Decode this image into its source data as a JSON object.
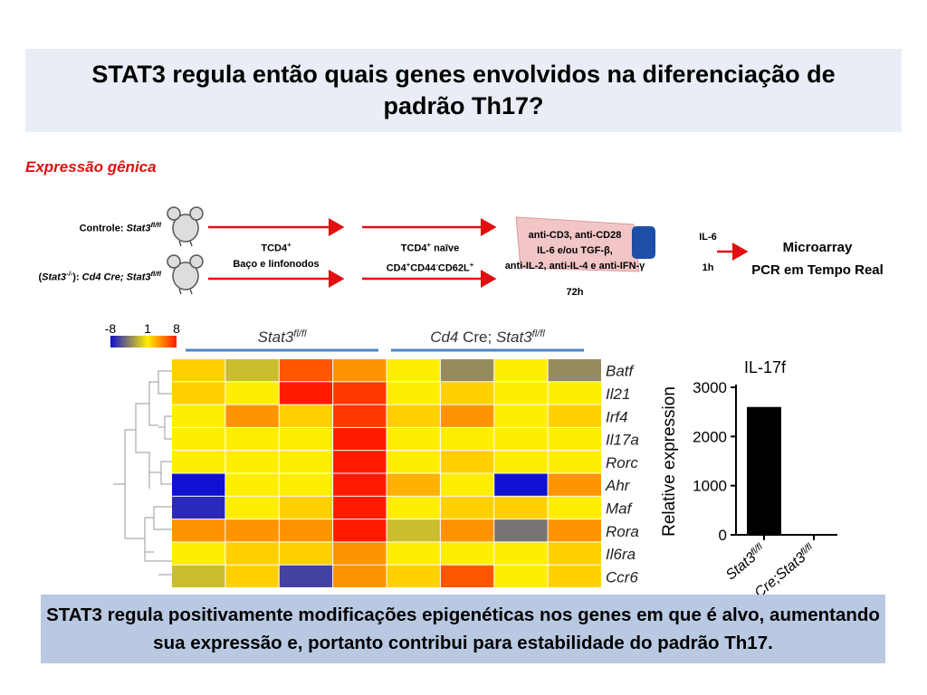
{
  "title": "STAT3 regula então quais genes envolvidos na diferenciação de padrão Th17?",
  "subtitle": "Expressão gênica",
  "diagram": {
    "control_label": [
      {
        "text": "Controle: ",
        "style": "b"
      },
      {
        "text": "Stat3",
        "style": "b i"
      },
      {
        "text": "fl/fl",
        "style": "b i sup"
      }
    ],
    "knockout_label": [
      {
        "text": "(",
        "style": "b"
      },
      {
        "text": "Stat3",
        "style": "b i"
      },
      {
        "text": "-/-",
        "style": "b i sup"
      },
      {
        "text": "): ",
        "style": "b"
      },
      {
        "text": "Cd4 Cre; Stat3",
        "style": "b i"
      },
      {
        "text": "fl/fl",
        "style": "b i sup"
      }
    ],
    "step1": [
      [
        {
          "text": "TCD4",
          "style": "b"
        },
        {
          "text": "+",
          "style": "b sup"
        }
      ],
      [
        {
          "text": "Baço e linfonodos",
          "style": "b"
        }
      ]
    ],
    "step2": [
      [
        {
          "text": "TCD4",
          "style": "b"
        },
        {
          "text": "+",
          "style": "b sup"
        },
        {
          "text": " naïve",
          "style": "b"
        }
      ],
      [
        {
          "text": "CD4",
          "style": "b"
        },
        {
          "text": "+",
          "style": "b sup"
        },
        {
          "text": "CD44",
          "style": "b"
        },
        {
          "text": "-",
          "style": "b sup"
        },
        {
          "text": "CD62L",
          "style": "b"
        },
        {
          "text": "+",
          "style": "b sup"
        }
      ]
    ],
    "culture": [
      "anti-CD3, anti-CD28",
      "IL-6 e/ou TGF-β,",
      "anti-IL-2, anti-IL-4 e anti-IFN-γ"
    ],
    "culture_time": "72h",
    "restim": "IL-6",
    "restim_time": "1h",
    "readout": [
      "Microarray",
      "PCR em Tempo Real"
    ]
  },
  "heatmap": {
    "colorscale": [
      {
        "value": -8,
        "color": "#1010d0"
      },
      {
        "value": 1,
        "color": "#ffee00"
      },
      {
        "value": 8,
        "color": "#ff1a00"
      }
    ],
    "groups": [
      [
        {
          "text": "Stat3",
          "style": "i"
        },
        {
          "text": "fl/fl",
          "style": "i sup"
        }
      ],
      [
        {
          "text": "Cd4",
          "style": "i"
        },
        {
          "text": " Cre; ",
          "style": ""
        },
        {
          "text": "Stat3",
          "style": "i"
        },
        {
          "text": "fl/fl",
          "style": "i sup"
        }
      ]
    ],
    "genes": [
      "Batf",
      "Il21",
      "Irf4",
      "Il17a",
      "Rorc",
      "Ahr",
      "Maf",
      "Rora",
      "Il6ra",
      "Ccr6"
    ],
    "values": [
      [
        2,
        -1,
        6,
        4,
        1,
        -3,
        1,
        -3
      ],
      [
        2,
        1,
        8,
        7,
        1,
        2,
        1,
        1
      ],
      [
        1,
        4,
        2,
        7,
        2,
        4,
        1,
        2
      ],
      [
        1,
        1,
        1,
        8,
        1,
        1,
        1,
        1
      ],
      [
        1,
        1,
        1,
        8,
        1,
        2,
        1,
        1
      ],
      [
        -8,
        1,
        1,
        8,
        3,
        1,
        -8,
        4
      ],
      [
        -7,
        1,
        2,
        8,
        1,
        2,
        2,
        1
      ],
      [
        4,
        4,
        4,
        8,
        -1,
        4,
        -4,
        4
      ],
      [
        1,
        2,
        2,
        4,
        1,
        1,
        1,
        2
      ],
      [
        -1,
        2,
        -6,
        4,
        2,
        6,
        1,
        2
      ]
    ]
  },
  "bar_chart": {
    "type": "bar",
    "title": "IL-17f",
    "y_label": "Relative expression",
    "categories": [
      [
        {
          "text": "Stat3",
          "style": "i"
        },
        {
          "text": "fl/fl",
          "style": "i sup"
        }
      ],
      [
        {
          "text": "Cre;Stat3",
          "style": "i"
        },
        {
          "text": "fl/fl",
          "style": "i sup"
        }
      ]
    ],
    "values": [
      2600,
      0
    ],
    "color": "#000000",
    "ylim": [
      0,
      3000
    ],
    "yticks": [
      0,
      1000,
      2000,
      3000
    ]
  },
  "conclusion": "STAT3 regula positivamente modificações epigenéticas nos genes em que é alvo, aumentando sua expressão e, portanto contribui para estabilidade do padrão Th17."
}
